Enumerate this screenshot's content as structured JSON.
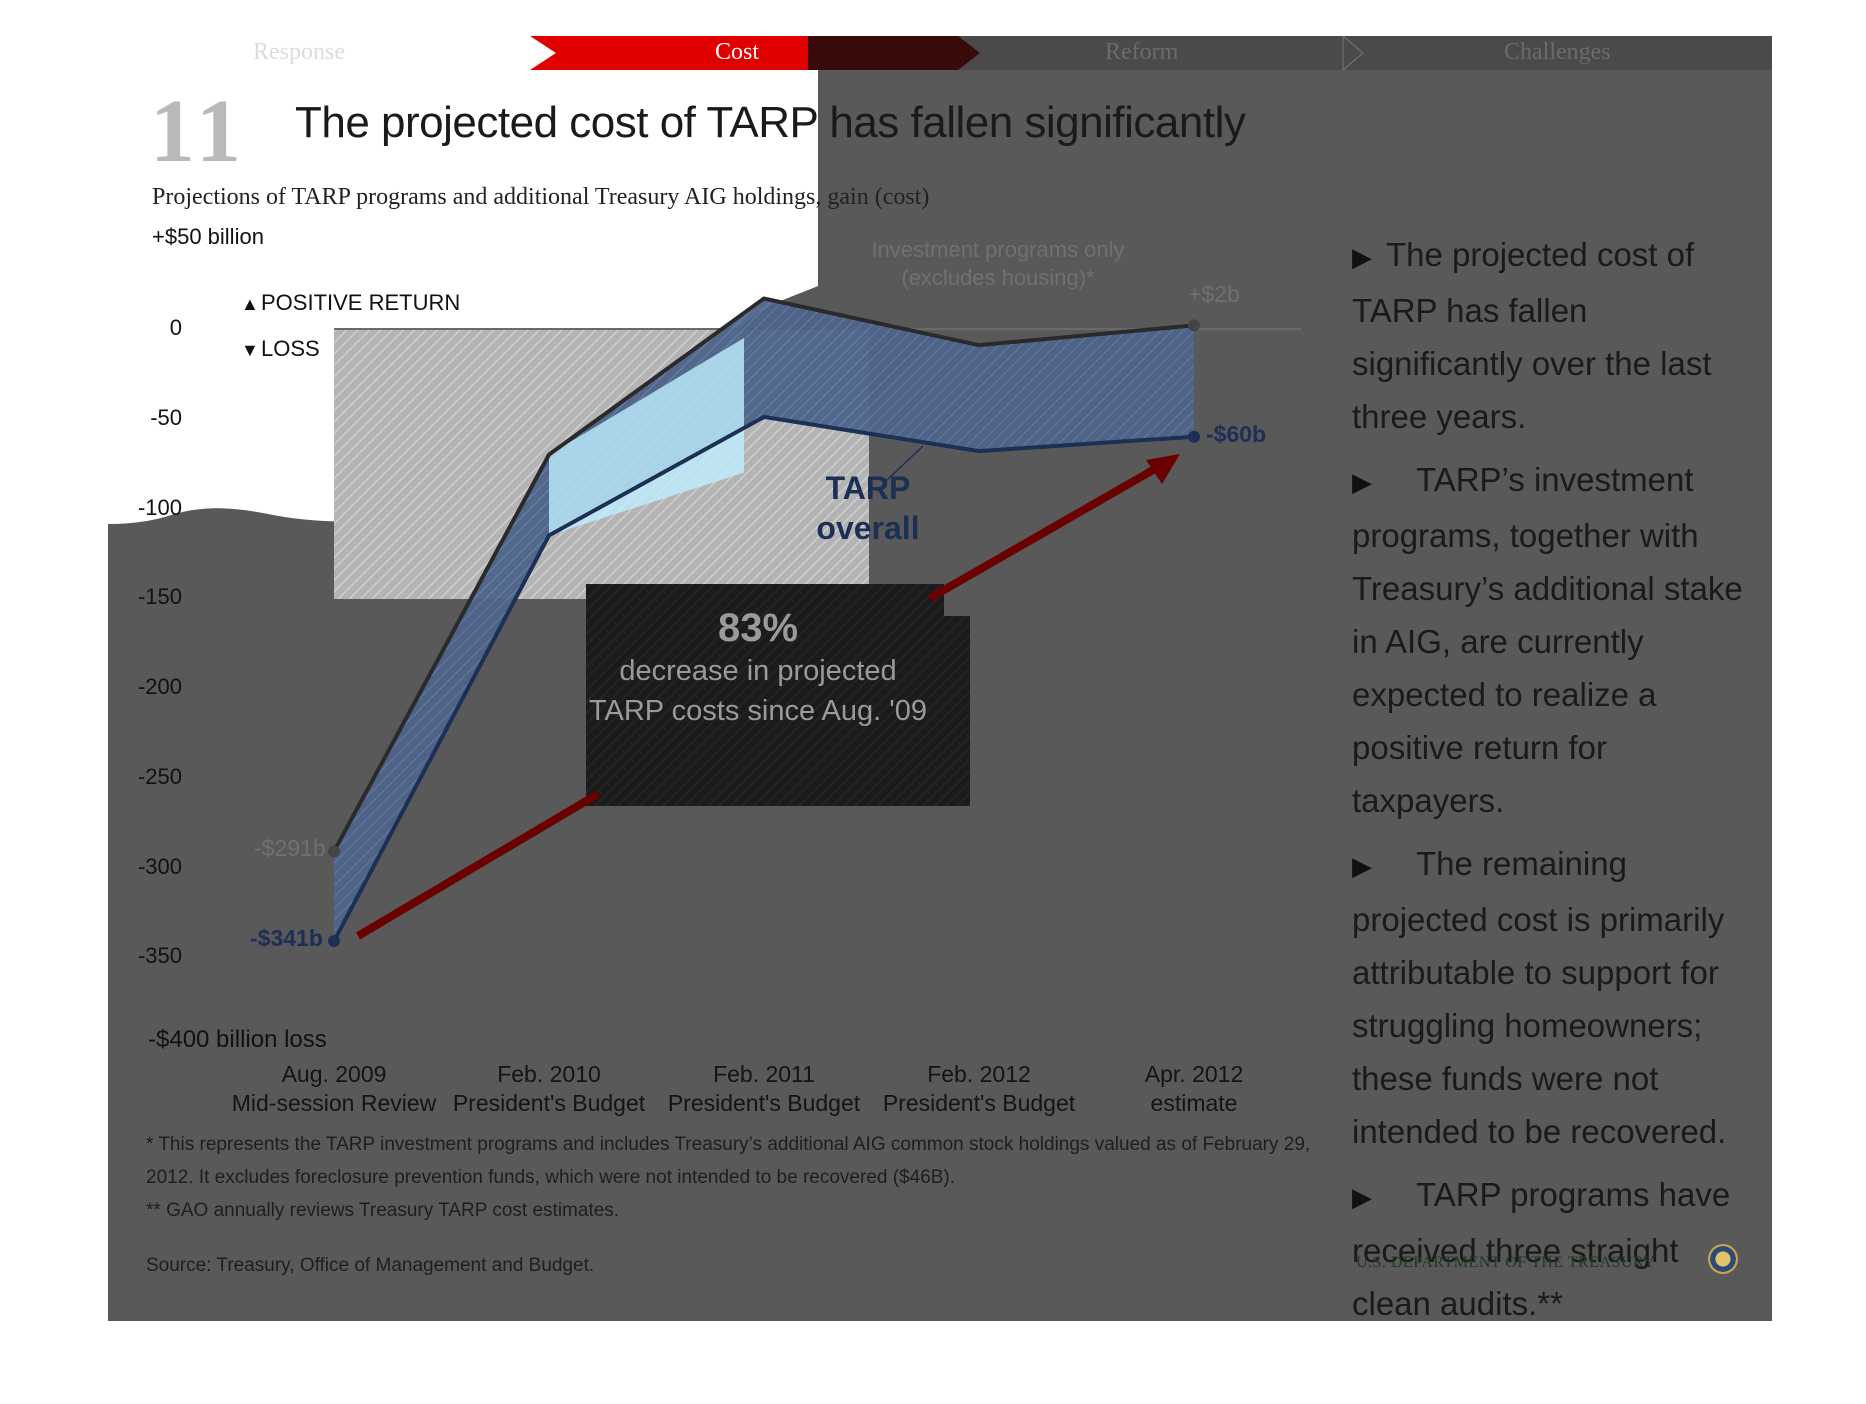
{
  "nav": {
    "tabs": [
      {
        "label": "Response"
      },
      {
        "label": "Cost"
      },
      {
        "label": "Reform"
      },
      {
        "label": "Challenges"
      }
    ]
  },
  "header": {
    "slide_number": "11",
    "title": "The projected cost of TARP has fallen significantly"
  },
  "bullets": [
    "The projected cost of TARP has fallen significantly over the last three years.",
    "TARP’s investment programs, together with Treasury’s additional stake in AIG,  are currently expected to realize a positive return for taxpayers.",
    "The remaining projected cost is primarily attributable to support for struggling homeowners; these funds were not intended to be recovered.",
    "TARP programs have received three straight clean audits.**"
  ],
  "footnotes": {
    "note1": "* This represents the TARP investment programs and includes Treasury’s additional AIG common stock holdings valued as of February 29, 2012. It excludes foreclosure prevention funds, which were not intended to be recovered ($46B).",
    "note2": "** GAO annually reviews Treasury TARP cost estimates.",
    "source": "Source: Treasury, Office of Management and Budget."
  },
  "branding": {
    "department": "U.S. DEPARTMENT OF THE TREASURY"
  },
  "colors": {
    "accent_red": "#e00000",
    "tarp_blue": "#1c2f55",
    "investment_dark": "#2a2a2a",
    "arrow_red": "#6b0000",
    "panel_gray": "#595959"
  },
  "chart_data": {
    "type": "line",
    "title": "Projections of TARP programs and additional Treasury AIG holdings, gain (cost)",
    "y_max_label": "+$50 billion",
    "y_min_label": "-$400 billion loss",
    "ylim": [
      -400,
      50
    ],
    "yticks": [
      "0",
      "-50",
      "-100",
      "-150",
      "-200",
      "-250",
      "-300",
      "-350"
    ],
    "categories": [
      {
        "line1": "Aug. 2009",
        "line2": "Mid-session Review"
      },
      {
        "line1": "Feb. 2010",
        "line2": "President's Budget"
      },
      {
        "line1": "Feb. 2011",
        "line2": "President's Budget"
      },
      {
        "line1": "Feb. 2012",
        "line2": "President's Budget"
      },
      {
        "line1": "Apr. 2012",
        "line2": "estimate"
      }
    ],
    "series": [
      {
        "name": "Investment programs only (excludes housing)*",
        "values": [
          -291,
          -70,
          17,
          -9,
          2
        ]
      },
      {
        "name": "TARP overall",
        "values": [
          -341,
          -115,
          -49,
          -68,
          -60
        ]
      }
    ],
    "legend": {
      "positive": "POSITIVE RETURN",
      "negative": "LOSS"
    },
    "annotations": {
      "investment": "Investment programs only (excludes housing)*",
      "tarp_overall": "TARP overall",
      "inv_start": "-$291b",
      "inv_end": "+$2b",
      "tarp_start": "-$341b",
      "tarp_end": "-$60b",
      "callout_pct": "83%",
      "callout_desc": "decrease in projected TARP costs since Aug. '09"
    }
  }
}
